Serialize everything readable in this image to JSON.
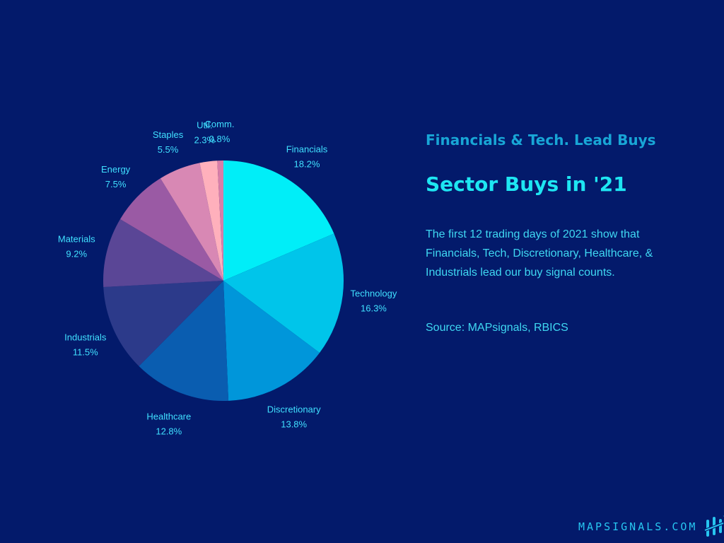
{
  "header": {
    "subtitle": "Financials & Tech. Lead Buys",
    "title": "Sector Buys in '21"
  },
  "description": "The first 12 trading days of 2021 show that Financials, Tech, Discretionary, Healthcare, & Industrials lead our buy signal counts.",
  "source": "Source: MAPsignals, RBICS",
  "brand": {
    "text": "MAPSIGNALS.COM",
    "logo_icon": "mapsignals-logo-icon"
  },
  "colors": {
    "background": "#031a6b",
    "label": "#40e0ff"
  },
  "chart_data": {
    "type": "pie",
    "title": "",
    "slices": [
      {
        "label": "Financials",
        "value": 18.2,
        "value_label": "18.2%",
        "color": "#00eef8"
      },
      {
        "label": "Technology",
        "value": 16.3,
        "value_label": "16.3%",
        "color": "#00c5ea"
      },
      {
        "label": "Discretionary",
        "value": 13.8,
        "value_label": "13.8%",
        "color": "#0096da"
      },
      {
        "label": "Healthcare",
        "value": 12.8,
        "value_label": "12.8%",
        "color": "#0a5db0"
      },
      {
        "label": "Industrials",
        "value": 11.5,
        "value_label": "11.5%",
        "color": "#2c3a8a"
      },
      {
        "label": "Materials",
        "value": 9.2,
        "value_label": "9.2%",
        "color": "#5a4696"
      },
      {
        "label": "Energy",
        "value": 7.5,
        "value_label": "7.5%",
        "color": "#9a5aa4"
      },
      {
        "label": "Staples",
        "value": 5.5,
        "value_label": "5.5%",
        "color": "#d888b4"
      },
      {
        "label": "Util.",
        "value": 2.3,
        "value_label": "2.3%",
        "color": "#ffb0bc"
      },
      {
        "label": "Comm.",
        "value": 0.8,
        "value_label": "0.8%",
        "color": "#d87ea8"
      }
    ]
  }
}
